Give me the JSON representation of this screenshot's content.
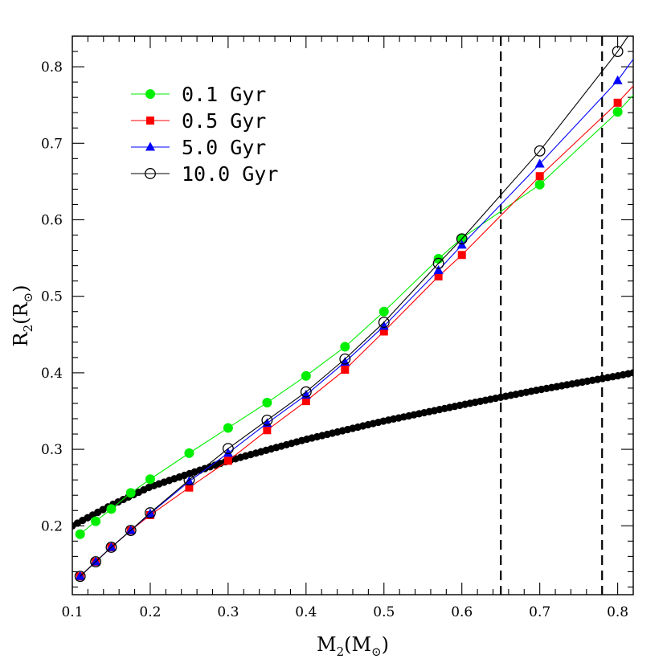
{
  "chart_data": {
    "type": "line",
    "title": "",
    "xlabel": {
      "main": "M",
      "sub": "2",
      "open": "(M",
      "sub2": "⊙",
      "close": ")"
    },
    "ylabel": {
      "main": "R",
      "sub": "2",
      "open": "(R",
      "sub2": "⊙",
      "close": ")"
    },
    "xlim": [
      0.1,
      0.82
    ],
    "ylim": [
      0.11,
      0.84
    ],
    "x_ticks": [
      "0.1",
      "0.2",
      "0.3",
      "0.4",
      "0.5",
      "0.6",
      "0.7",
      "0.8"
    ],
    "y_ticks": [
      "0.2",
      "0.3",
      "0.4",
      "0.5",
      "0.6",
      "0.7",
      "0.8"
    ],
    "legend_position": "top-left",
    "grid": false,
    "vertical_dashed_lines": [
      0.65,
      0.78
    ],
    "series": [
      {
        "name": "0.1 Gyr",
        "color": "#00ee00",
        "marker": "filled-circle",
        "x": [
          0.11,
          0.13,
          0.15,
          0.175,
          0.2,
          0.25,
          0.3,
          0.35,
          0.4,
          0.45,
          0.5,
          0.57,
          0.6,
          0.7,
          0.8
        ],
        "y": [
          0.189,
          0.206,
          0.222,
          0.243,
          0.261,
          0.295,
          0.328,
          0.361,
          0.396,
          0.434,
          0.48,
          0.549,
          0.576,
          0.646,
          0.741
        ],
        "line_extension": [
          [
            0.8,
            0.741
          ],
          [
            0.82,
            0.763
          ]
        ]
      },
      {
        "name": "0.5 Gyr",
        "color": "#ff0000",
        "marker": "filled-square",
        "x": [
          0.11,
          0.13,
          0.15,
          0.175,
          0.2,
          0.25,
          0.3,
          0.35,
          0.4,
          0.45,
          0.5,
          0.57,
          0.6,
          0.7,
          0.8
        ],
        "y": [
          0.134,
          0.153,
          0.172,
          0.194,
          0.214,
          0.25,
          0.285,
          0.325,
          0.363,
          0.404,
          0.454,
          0.526,
          0.554,
          0.657,
          0.753
        ],
        "line_extension": [
          [
            0.8,
            0.753
          ],
          [
            0.82,
            0.775
          ]
        ]
      },
      {
        "name": "5.0 Gyr",
        "color": "#0000ff",
        "marker": "filled-triangle",
        "x": [
          0.11,
          0.13,
          0.15,
          0.175,
          0.2,
          0.25,
          0.3,
          0.35,
          0.4,
          0.45,
          0.5,
          0.57,
          0.6,
          0.7,
          0.8
        ],
        "y": [
          0.134,
          0.153,
          0.172,
          0.194,
          0.216,
          0.258,
          0.295,
          0.334,
          0.371,
          0.414,
          0.461,
          0.534,
          0.567,
          0.673,
          0.782
        ],
        "line_extension": [
          [
            0.8,
            0.782
          ],
          [
            0.82,
            0.81
          ]
        ]
      },
      {
        "name": "10.0 Gyr",
        "color": "#000000",
        "marker": "open-circle",
        "x": [
          0.11,
          0.13,
          0.15,
          0.175,
          0.2,
          0.25,
          0.3,
          0.35,
          0.4,
          0.45,
          0.5,
          0.57,
          0.6,
          0.7,
          0.8
        ],
        "y": [
          0.134,
          0.153,
          0.172,
          0.194,
          0.217,
          0.26,
          0.301,
          0.338,
          0.375,
          0.418,
          0.466,
          0.543,
          0.575,
          0.69,
          0.82
        ],
        "line_extension": [
          [
            0.8,
            0.82
          ],
          [
            0.82,
            0.85
          ]
        ]
      }
    ],
    "roche_curve": {
      "color": "#000000",
      "marker": "filled-circle-dense",
      "x_range": [
        0.1,
        0.82
      ],
      "samples": [
        [
          0.1,
          0.2
        ],
        [
          0.15,
          0.227
        ],
        [
          0.2,
          0.251
        ],
        [
          0.3,
          0.285
        ],
        [
          0.4,
          0.313
        ],
        [
          0.5,
          0.337
        ],
        [
          0.6,
          0.358
        ],
        [
          0.7,
          0.378
        ],
        [
          0.8,
          0.396
        ],
        [
          0.82,
          0.4
        ]
      ]
    }
  }
}
